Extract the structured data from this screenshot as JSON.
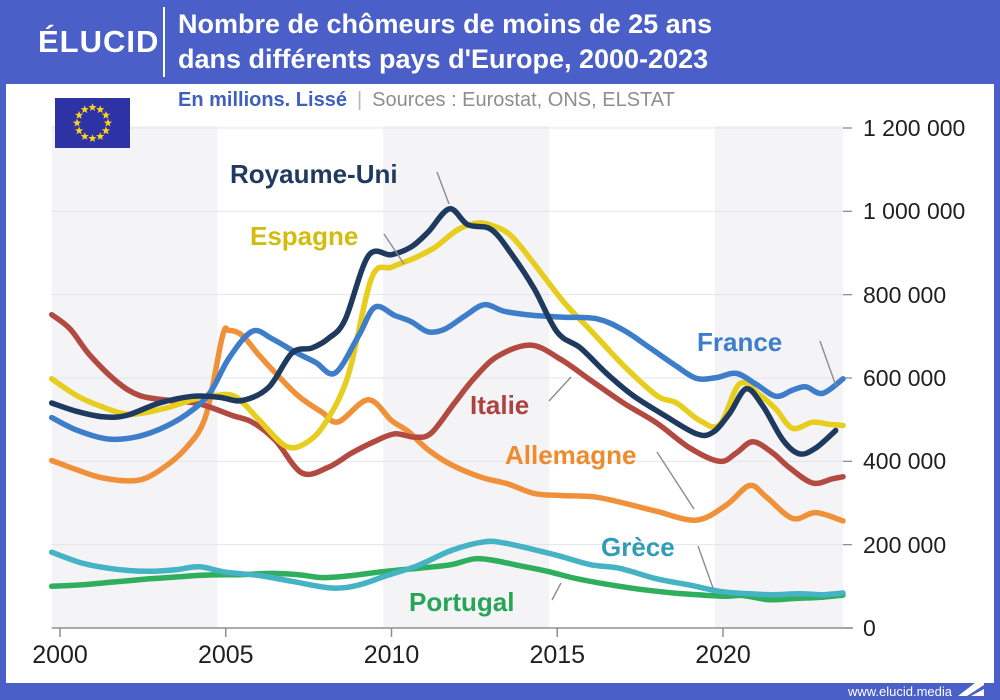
{
  "header": {
    "logo": "ÉLUCID",
    "title_line1": "Nombre de chômeurs de moins de 25 ans",
    "title_line2": "dans différents pays d'Europe, 2000-2023"
  },
  "subtitle": {
    "note": "En millions. Lissé",
    "separator": "|",
    "sources": "Sources : Eurostat, ONS, ELSTAT",
    "note_color": "#3f5fc0"
  },
  "footer": {
    "website": "www.elucid.media"
  },
  "colors": {
    "brand_blue": "#4a5fc7",
    "band_gray": "#f4f4f6",
    "gridline": "#e5e5e8",
    "axis": "#8f8f8f",
    "tick_text": "#1f1f1f",
    "leader_line": "#8c8c8c",
    "eu_flag_blue": "#2d33a5",
    "eu_flag_star": "#ffd617"
  },
  "chart_data": {
    "type": "line",
    "title": "Nombre de chômeurs de moins de 25 ans dans différents pays d'Europe, 2000-2023",
    "unit_note": "En millions. Lissé",
    "sources": "Eurostat, ONS, ELSTAT",
    "grid": true,
    "legend_position": "inline-labels",
    "x_axis": {
      "ticks": [
        2000,
        2005,
        2010,
        2015,
        2020
      ],
      "range": [
        1999.75,
        2023.62
      ]
    },
    "y_axis": {
      "tick_values": [
        0,
        200000,
        400000,
        600000,
        800000,
        1000000,
        1200000
      ],
      "tick_labels": [
        "0",
        "200 000",
        "400 000",
        "600 000",
        "800 000",
        "1 000 000",
        "1 200 000"
      ],
      "range": [
        0,
        1200000
      ]
    },
    "series": [
      {
        "id": "royaume_uni",
        "name": "Royaume-Uni",
        "color": "#1e3a5f",
        "label_color": "#1e3a5f",
        "points": [
          [
            1999.75,
            540000
          ],
          [
            2000.5,
            520000
          ],
          [
            2001.3,
            507000
          ],
          [
            2002,
            510000
          ],
          [
            2003,
            540000
          ],
          [
            2004,
            556000
          ],
          [
            2004.8,
            554000
          ],
          [
            2005.5,
            546000
          ],
          [
            2006.3,
            578000
          ],
          [
            2007,
            660000
          ],
          [
            2007.6,
            672000
          ],
          [
            2008.1,
            695000
          ],
          [
            2008.6,
            740000
          ],
          [
            2009.3,
            893000
          ],
          [
            2010,
            896000
          ],
          [
            2010.6,
            915000
          ],
          [
            2011.1,
            950000
          ],
          [
            2011.75,
            1006000
          ],
          [
            2012.3,
            968000
          ],
          [
            2013,
            957000
          ],
          [
            2013.6,
            900000
          ],
          [
            2014.3,
            815000
          ],
          [
            2015,
            710000
          ],
          [
            2015.7,
            672000
          ],
          [
            2016.5,
            610000
          ],
          [
            2017.3,
            557000
          ],
          [
            2018.2,
            512000
          ],
          [
            2019.2,
            466000
          ],
          [
            2019.7,
            470000
          ],
          [
            2020.2,
            515000
          ],
          [
            2020.7,
            574000
          ],
          [
            2021.2,
            533000
          ],
          [
            2021.8,
            452000
          ],
          [
            2022.3,
            418000
          ],
          [
            2022.8,
            432000
          ],
          [
            2023.4,
            474000
          ]
        ]
      },
      {
        "id": "espagne",
        "name": "Espagne",
        "color": "#e7cd1d",
        "label_color": "#d2bc0e",
        "points": [
          [
            1999.75,
            598000
          ],
          [
            2000.5,
            558000
          ],
          [
            2001.2,
            533000
          ],
          [
            2002.1,
            513000
          ],
          [
            2003.2,
            528000
          ],
          [
            2004,
            548000
          ],
          [
            2004.7,
            558000
          ],
          [
            2005.3,
            555000
          ],
          [
            2006,
            500000
          ],
          [
            2006.8,
            437000
          ],
          [
            2007.4,
            443000
          ],
          [
            2008,
            492000
          ],
          [
            2008.7,
            608000
          ],
          [
            2009.4,
            840000
          ],
          [
            2010,
            866000
          ],
          [
            2010.7,
            888000
          ],
          [
            2011.3,
            913000
          ],
          [
            2012,
            956000
          ],
          [
            2012.6,
            972000
          ],
          [
            2013.1,
            964000
          ],
          [
            2013.6,
            942000
          ],
          [
            2014.2,
            885000
          ],
          [
            2015.2,
            782000
          ],
          [
            2016,
            715000
          ],
          [
            2017,
            630000
          ],
          [
            2018,
            558000
          ],
          [
            2018.6,
            540000
          ],
          [
            2019.3,
            498000
          ],
          [
            2019.9,
            488000
          ],
          [
            2020.5,
            586000
          ],
          [
            2021.1,
            560000
          ],
          [
            2021.6,
            525000
          ],
          [
            2022.1,
            479000
          ],
          [
            2022.7,
            494000
          ],
          [
            2023.2,
            489000
          ],
          [
            2023.62,
            486000
          ]
        ]
      },
      {
        "id": "france",
        "name": "France",
        "color": "#3d7dc9",
        "label_color": "#3d7dc9",
        "points": [
          [
            1999.75,
            505000
          ],
          [
            2000.5,
            475000
          ],
          [
            2001.4,
            454000
          ],
          [
            2002.2,
            457000
          ],
          [
            2003,
            477000
          ],
          [
            2003.8,
            512000
          ],
          [
            2004.5,
            562000
          ],
          [
            2005.1,
            648000
          ],
          [
            2005.8,
            712000
          ],
          [
            2006.4,
            694000
          ],
          [
            2007.1,
            662000
          ],
          [
            2007.7,
            638000
          ],
          [
            2008.3,
            612000
          ],
          [
            2009,
            700000
          ],
          [
            2009.5,
            770000
          ],
          [
            2010.1,
            750000
          ],
          [
            2010.6,
            735000
          ],
          [
            2011.1,
            711000
          ],
          [
            2011.6,
            717000
          ],
          [
            2012.2,
            748000
          ],
          [
            2012.8,
            776000
          ],
          [
            2013.4,
            760000
          ],
          [
            2014.2,
            751000
          ],
          [
            2015.2,
            746000
          ],
          [
            2016.2,
            742000
          ],
          [
            2017,
            715000
          ],
          [
            2017.8,
            672000
          ],
          [
            2018.6,
            628000
          ],
          [
            2019.2,
            599000
          ],
          [
            2019.8,
            601000
          ],
          [
            2020.4,
            611000
          ],
          [
            2021,
            585000
          ],
          [
            2021.6,
            556000
          ],
          [
            2022.1,
            571000
          ],
          [
            2022.5,
            579000
          ],
          [
            2023,
            563000
          ],
          [
            2023.62,
            598000
          ]
        ]
      },
      {
        "id": "italie",
        "name": "Italie",
        "color": "#b24a42",
        "label_color": "#ad4340",
        "points": [
          [
            1999.75,
            752000
          ],
          [
            2000.3,
            718000
          ],
          [
            2000.9,
            655000
          ],
          [
            2001.7,
            592000
          ],
          [
            2002.4,
            558000
          ],
          [
            2003.3,
            546000
          ],
          [
            2004.2,
            538000
          ],
          [
            2005.2,
            510000
          ],
          [
            2005.8,
            494000
          ],
          [
            2006.5,
            450000
          ],
          [
            2007.3,
            372000
          ],
          [
            2008.1,
            386000
          ],
          [
            2008.8,
            420000
          ],
          [
            2009.5,
            448000
          ],
          [
            2010.1,
            466000
          ],
          [
            2010.7,
            458000
          ],
          [
            2011.2,
            468000
          ],
          [
            2011.9,
            540000
          ],
          [
            2012.5,
            600000
          ],
          [
            2013.2,
            652000
          ],
          [
            2014.2,
            679000
          ],
          [
            2015.1,
            645000
          ],
          [
            2016,
            595000
          ],
          [
            2017,
            540000
          ],
          [
            2018,
            492000
          ],
          [
            2019,
            432000
          ],
          [
            2019.9,
            400000
          ],
          [
            2020.4,
            420000
          ],
          [
            2020.9,
            447000
          ],
          [
            2021.5,
            420000
          ],
          [
            2022,
            385000
          ],
          [
            2022.7,
            348000
          ],
          [
            2023.3,
            358000
          ],
          [
            2023.62,
            363000
          ]
        ]
      },
      {
        "id": "allemagne",
        "name": "Allemagne",
        "color": "#f0913a",
        "label_color": "#ee8b2e",
        "points": [
          [
            1999.75,
            402000
          ],
          [
            2000.5,
            380000
          ],
          [
            2001.3,
            360000
          ],
          [
            2002.3,
            354000
          ],
          [
            2003,
            378000
          ],
          [
            2003.8,
            432000
          ],
          [
            2004.4,
            510000
          ],
          [
            2004.9,
            700000
          ],
          [
            2005.1,
            714000
          ],
          [
            2005.5,
            702000
          ],
          [
            2006,
            655000
          ],
          [
            2006.5,
            612000
          ],
          [
            2007.2,
            556000
          ],
          [
            2007.9,
            518000
          ],
          [
            2008.4,
            495000
          ],
          [
            2009.3,
            548000
          ],
          [
            2010,
            498000
          ],
          [
            2010.5,
            472000
          ],
          [
            2011.1,
            428000
          ],
          [
            2011.8,
            392000
          ],
          [
            2012.7,
            362000
          ],
          [
            2013.5,
            346000
          ],
          [
            2014.3,
            323000
          ],
          [
            2015.1,
            318000
          ],
          [
            2016.1,
            315000
          ],
          [
            2017,
            300000
          ],
          [
            2018,
            280000
          ],
          [
            2019.2,
            259000
          ],
          [
            2020.1,
            295000
          ],
          [
            2020.8,
            342000
          ],
          [
            2021.3,
            315000
          ],
          [
            2022.1,
            263000
          ],
          [
            2022.8,
            277000
          ],
          [
            2023.62,
            257000
          ]
        ]
      },
      {
        "id": "grece",
        "name": "Grèce",
        "color": "#44b3c3",
        "label_color": "#2f9db5",
        "points": [
          [
            1999.75,
            182000
          ],
          [
            2000.7,
            155000
          ],
          [
            2001.7,
            141000
          ],
          [
            2002.7,
            136000
          ],
          [
            2003.5,
            140000
          ],
          [
            2004.2,
            147000
          ],
          [
            2005,
            134000
          ],
          [
            2006,
            126000
          ],
          [
            2007,
            112000
          ],
          [
            2008.2,
            96000
          ],
          [
            2009,
            103000
          ],
          [
            2009.9,
            127000
          ],
          [
            2010.8,
            150000
          ],
          [
            2011.8,
            186000
          ],
          [
            2012.8,
            207000
          ],
          [
            2013.4,
            204000
          ],
          [
            2014.2,
            190000
          ],
          [
            2015.1,
            172000
          ],
          [
            2016,
            152000
          ],
          [
            2016.9,
            143000
          ],
          [
            2018,
            118000
          ],
          [
            2019,
            103000
          ],
          [
            2019.9,
            88000
          ],
          [
            2020.8,
            82000
          ],
          [
            2021.5,
            80000
          ],
          [
            2022.3,
            82000
          ],
          [
            2023,
            80000
          ],
          [
            2023.62,
            84000
          ]
        ]
      },
      {
        "id": "portugal",
        "name": "Portugal",
        "color": "#2fae5e",
        "label_color": "#27a557",
        "points": [
          [
            1999.75,
            100000
          ],
          [
            2000.7,
            104000
          ],
          [
            2001.7,
            111000
          ],
          [
            2002.7,
            118000
          ],
          [
            2003.6,
            123000
          ],
          [
            2004.4,
            127000
          ],
          [
            2005.4,
            128000
          ],
          [
            2006.4,
            131000
          ],
          [
            2007.2,
            128000
          ],
          [
            2007.9,
            121000
          ],
          [
            2008.7,
            125000
          ],
          [
            2009.6,
            134000
          ],
          [
            2010.2,
            139000
          ],
          [
            2010.9,
            144000
          ],
          [
            2011.8,
            152000
          ],
          [
            2012.5,
            166000
          ],
          [
            2013.1,
            162000
          ],
          [
            2013.9,
            149000
          ],
          [
            2014.7,
            136000
          ],
          [
            2015.5,
            120000
          ],
          [
            2016.5,
            105000
          ],
          [
            2017.5,
            93000
          ],
          [
            2018.5,
            84000
          ],
          [
            2019.4,
            79000
          ],
          [
            2020.1,
            76000
          ],
          [
            2020.6,
            78000
          ],
          [
            2021.4,
            68000
          ],
          [
            2022.2,
            71000
          ],
          [
            2023,
            74000
          ],
          [
            2023.62,
            79000
          ]
        ]
      }
    ]
  }
}
